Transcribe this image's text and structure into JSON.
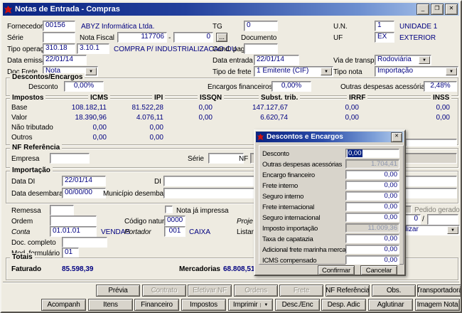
{
  "icons": {
    "dropdown_arrow": "▼",
    "browse": "...",
    "minimize": "_",
    "restore": "❐",
    "close": "✕"
  },
  "window": {
    "title": "Notas de Entrada - Compras"
  },
  "header": {
    "fornecedor_label": "Fornecedor",
    "fornecedor_code": "00156",
    "fornecedor_name": "ABYZ Informática Ltda.",
    "tg_label": "TG",
    "tg_value": "0",
    "un_label": "U.N.",
    "un_code": "1",
    "un_name": "UNIDADE 1",
    "serie_label": "Série",
    "serie_value": "",
    "nota_fiscal_label": "Nota Fiscal",
    "nota_fiscal_numero": "117706",
    "nota_fiscal_dash": "-",
    "nota_fiscal_sub": "0",
    "documento_label": "Documento",
    "documento_value": "",
    "uf_label": "UF",
    "uf_code": "EX",
    "uf_name": "EXTERIOR",
    "tipo_operacao_label": "Tipo operação",
    "tipo_operacao_code1": "310.18",
    "tipo_operacao_code2": "3.10.1",
    "tipo_operacao_desc": "COMPRA P/ INDUSTRIALIZACAO OU",
    "cond_pag_label": "Cond. pag.",
    "cond_pag_value": "",
    "data_emissao_label": "Data emissão",
    "data_emissao_value": "22/01/14",
    "data_entrada_label": "Data entrada",
    "data_entrada_value": "22/01/14",
    "via_transporte_label": "Via de transporte",
    "via_transporte_value": "Rodoviária",
    "doc_frete_label": "Doc Frete",
    "doc_frete_value": "Nota",
    "tipo_frete_label": "Tipo de frete",
    "tipo_frete_value": "1 Emitente (CIF)",
    "tipo_nota_label": "Tipo nota",
    "tipo_nota_value": "Importação"
  },
  "descontos_encargos": {
    "legend": "Descontos/Encargos",
    "desconto_label": "Desconto",
    "desconto_value": "0,00%",
    "encargos_label": "Encargos financeiros",
    "encargos_value": "0,00%",
    "outras_label": "Outras despesas acessórias",
    "outras_value": "2,48%"
  },
  "impostos": {
    "legend": "Impostos",
    "columns": [
      "ICMS",
      "IPI",
      "ISSQN",
      "Subst. trib.",
      "IRRF",
      "INSS"
    ],
    "rows": [
      {
        "label": "Base",
        "values": [
          "108.182,11",
          "81.522,28",
          "0,00",
          "147.127,67",
          "0,00",
          "0,00"
        ]
      },
      {
        "label": "Valor",
        "values": [
          "18.390,96",
          "4.076,11",
          "0,00",
          "6.620,74",
          "0,00",
          "0,00"
        ]
      },
      {
        "label": "Não tributado",
        "values": [
          "0,00",
          "0,00",
          "",
          "",
          "",
          ""
        ]
      },
      {
        "label": "Outros",
        "values": [
          "0,00",
          "0,00",
          "",
          "",
          "",
          ""
        ]
      }
    ]
  },
  "nf_referencia": {
    "legend": "NF Referência",
    "empresa_label": "Empresa",
    "empresa_value": "",
    "serie_label": "Série",
    "serie_value": "",
    "nf_label": "NF",
    "nf_value": ""
  },
  "importacao": {
    "legend": "Importação",
    "data_di_label": "Data DI",
    "data_di_value": "22/01/14",
    "di_label": "DI",
    "di_value": "",
    "data_desembaraco_label": "Data desembaraço",
    "data_desembaraco_value": "00/00/00",
    "municipio_label": "Município desembaraço",
    "municipio_value": ""
  },
  "detalhes": {
    "remessa_label": "Remessa",
    "remessa_value": "",
    "nota_ja_impressa_label": "Nota já impressa",
    "pedido_gerado_label": "Pedido gerado",
    "ordem_label": "Ordem",
    "ordem_value": "",
    "codigo_natureza_label": "Código natureza",
    "codigo_natureza_value": "0000",
    "projeto_label": "Proje",
    "lote_value": "0",
    "lote_separator": "/",
    "lote2_value": "",
    "conta_label": "Conta",
    "conta_value": "01.01.01",
    "conta_desc": "VENDAS",
    "portador_label": "Portador",
    "portador_value": "001",
    "portador_desc": "CAIXA",
    "listar_label": "Listar",
    "contabilizar_value": "Contabilizar",
    "doc_completo_label": "Doc. completo",
    "doc_completo_value": "",
    "mod_formulario_label": "Mod. formulário",
    "mod_formulario_value": "01"
  },
  "totais": {
    "legend": "Totais",
    "faturado_label": "Faturado",
    "faturado_value": "85.598,39",
    "mercadorias_label": "Mercadorias",
    "mercadorias_value": "68.808,51"
  },
  "dialog": {
    "title": "Descontos e Encargos",
    "fields": [
      {
        "label": "Desconto",
        "value": "0,00",
        "state": "selected"
      },
      {
        "label": "Outras despesas acessórias",
        "value": "1.704,41",
        "state": "disabled"
      },
      {
        "label": "Encargo financeiro",
        "value": "0,00",
        "state": "normal"
      },
      {
        "label": "Frete interno",
        "value": "0,00",
        "state": "normal"
      },
      {
        "label": "Seguro interno",
        "value": "0,00",
        "state": "normal"
      },
      {
        "label": "Frete internacional",
        "value": "0,00",
        "state": "normal"
      },
      {
        "label": "Seguro internacional",
        "value": "0,00",
        "state": "normal"
      },
      {
        "label": "Imposto importação",
        "value": "11.009,36",
        "state": "disabled"
      },
      {
        "label": "Taxa de capatazia",
        "value": "0,00",
        "state": "normal"
      },
      {
        "label": "Adicional frete marinha mercante",
        "value": "0,00",
        "state": "normal"
      },
      {
        "label": "ICMS compensado",
        "value": "0,00",
        "state": "normal"
      }
    ],
    "confirm_label": "Confirmar",
    "cancel_label": "Cancelar"
  },
  "buttons": {
    "row1": [
      {
        "label": "Prévia",
        "enabled": true
      },
      {
        "label": "Contrato",
        "enabled": false
      },
      {
        "label": "Efetivar NF",
        "enabled": false
      },
      {
        "label": "Ordens",
        "enabled": false
      },
      {
        "label": "Frete",
        "enabled": false
      },
      {
        "label": "NF Referência",
        "enabled": true
      },
      {
        "label": "Obs.",
        "enabled": true
      },
      {
        "label": "Transportadora",
        "enabled": true
      }
    ],
    "row2": [
      {
        "label": "Acompanh",
        "enabled": true
      },
      {
        "label": "Itens",
        "enabled": true
      },
      {
        "label": "Financeiro",
        "enabled": true
      },
      {
        "label": "Impostos",
        "enabled": true
      },
      {
        "label": "Imprimir",
        "enabled": true,
        "split": true
      },
      {
        "label": "Desc./Enc",
        "enabled": true
      },
      {
        "label": "Desp. Adic",
        "enabled": true
      },
      {
        "label": "Aglutinar",
        "enabled": true
      },
      {
        "label": "Imagem Nota",
        "enabled": true
      }
    ]
  },
  "colors": {
    "accent_title": "#0a2483",
    "value_text": "#000080",
    "window_face": "#eeebe1",
    "control_face": "#d8d4cb",
    "app_icon_red": "#cc1111"
  }
}
